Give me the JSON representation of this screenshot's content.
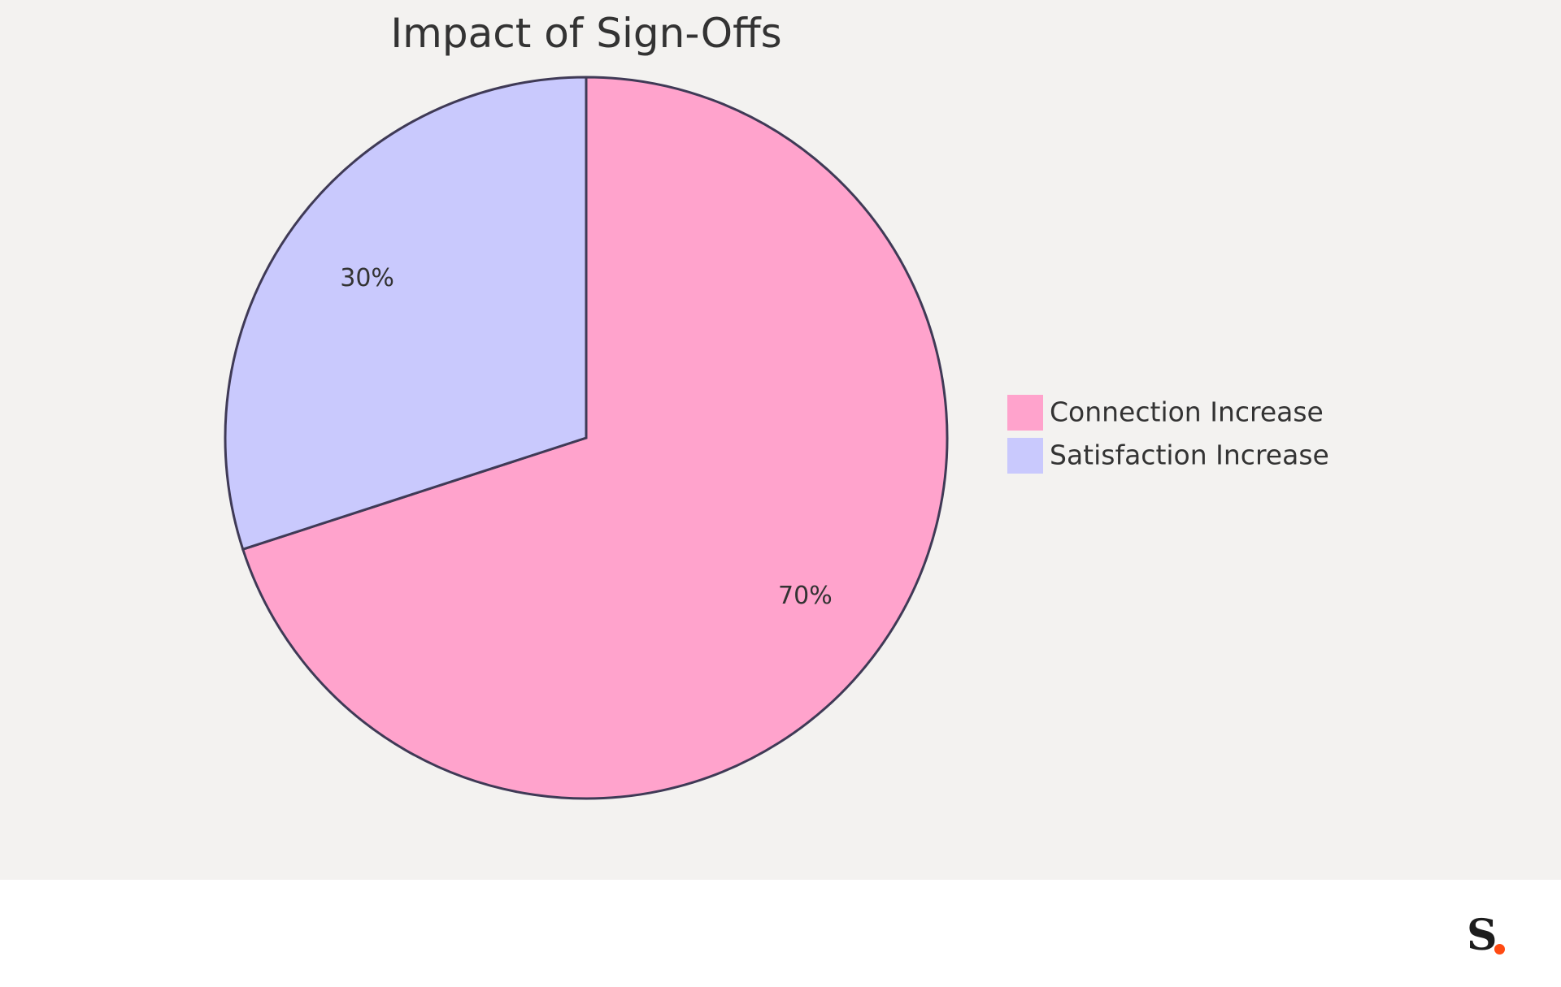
{
  "chart_data": {
    "type": "pie",
    "title": "Impact of Sign-Offs",
    "slices": [
      {
        "label": "Connection Increase",
        "value": 70,
        "display": "70%",
        "color": "#ffa3cc"
      },
      {
        "label": "Satisfaction Increase",
        "value": 30,
        "display": "30%",
        "color": "#c9c9fd"
      }
    ],
    "legend_position": "right",
    "start_angle_deg": 0,
    "direction": "clockwise"
  },
  "colors": {
    "background": "#f3f2f0",
    "stroke": "#3f3a56",
    "text": "#333333",
    "logo_dot": "#ff4a12"
  },
  "logo": {
    "letter": "S"
  }
}
